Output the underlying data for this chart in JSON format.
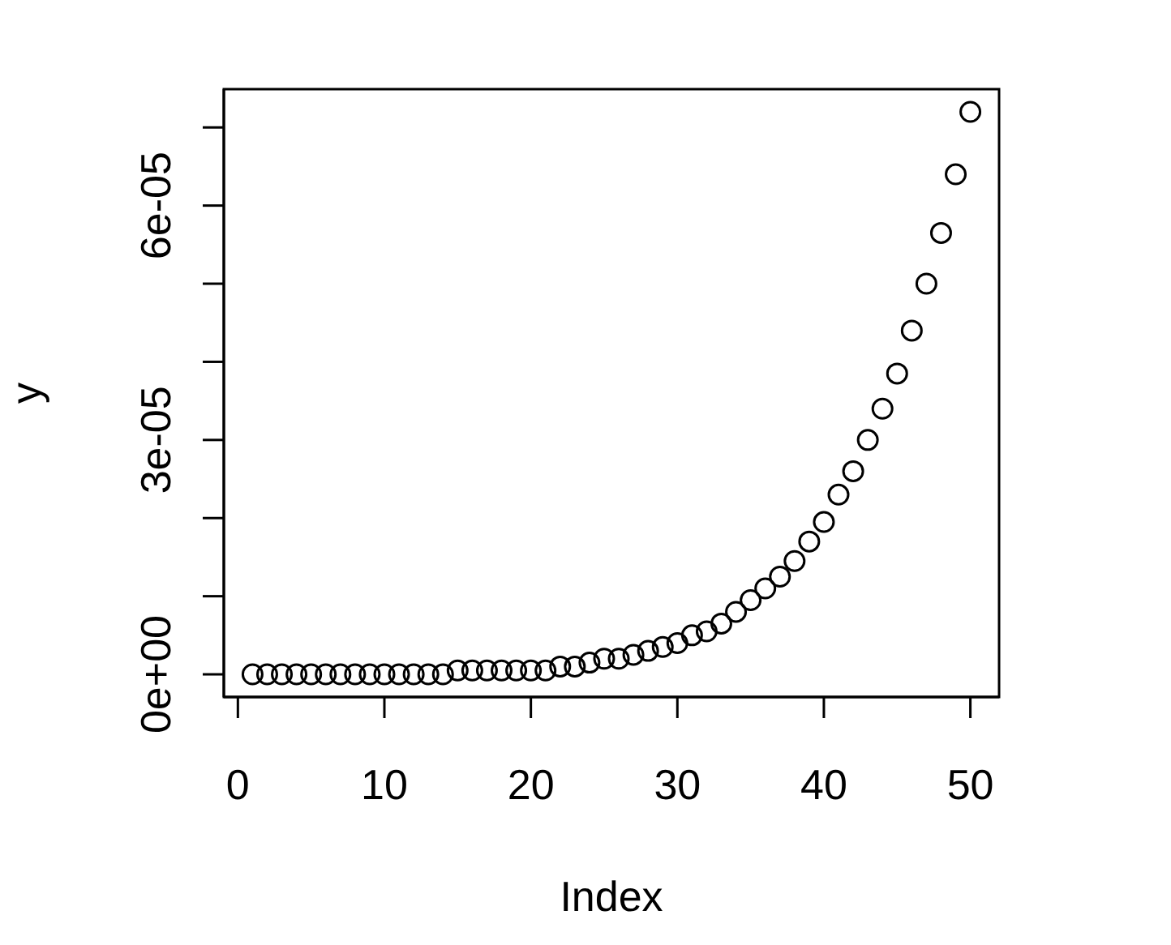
{
  "chart_data": {
    "type": "scatter",
    "xlabel": "Index",
    "ylabel": "y",
    "marker": "circle",
    "color": "#000000",
    "x": [
      1,
      2,
      3,
      4,
      5,
      6,
      7,
      8,
      9,
      10,
      11,
      12,
      13,
      14,
      15,
      16,
      17,
      18,
      19,
      20,
      21,
      22,
      23,
      24,
      25,
      26,
      27,
      28,
      29,
      30,
      31,
      32,
      33,
      34,
      35,
      36,
      37,
      38,
      39,
      40,
      41,
      42,
      43,
      44,
      45,
      46,
      47,
      48,
      49,
      50
    ],
    "values": [
      0,
      0,
      0,
      0,
      0,
      0,
      0,
      0,
      0,
      0,
      0,
      0,
      0,
      0,
      5e-07,
      5e-07,
      5e-07,
      5e-07,
      5e-07,
      5e-07,
      5e-07,
      1e-06,
      1e-06,
      1.5e-06,
      2e-06,
      2e-06,
      2.5e-06,
      3e-06,
      3.5e-06,
      4e-06,
      5e-06,
      5.5e-06,
      6.5e-06,
      8e-06,
      9.5e-06,
      1.1e-05,
      1.25e-05,
      1.45e-05,
      1.7e-05,
      1.95e-05,
      2.3e-05,
      2.6e-05,
      3e-05,
      3.4e-05,
      3.85e-05,
      4.4e-05,
      5e-05,
      5.65e-05,
      6.4e-05,
      7.2e-05
    ],
    "xlim": [
      -0.96,
      51.96
    ],
    "xticks": [
      0,
      10,
      20,
      30,
      40,
      50
    ],
    "ylim": [
      -2.9e-06,
      7.49e-05
    ],
    "yticks": [
      {
        "value": 0,
        "label": "0e+00"
      },
      {
        "value": 1e-05,
        "label": null
      },
      {
        "value": 2e-05,
        "label": null
      },
      {
        "value": 3e-05,
        "label": "3e-05"
      },
      {
        "value": 4e-05,
        "label": null
      },
      {
        "value": 5e-05,
        "label": null
      },
      {
        "value": 6e-05,
        "label": "6e-05"
      },
      {
        "value": 7e-05,
        "label": null
      }
    ]
  }
}
